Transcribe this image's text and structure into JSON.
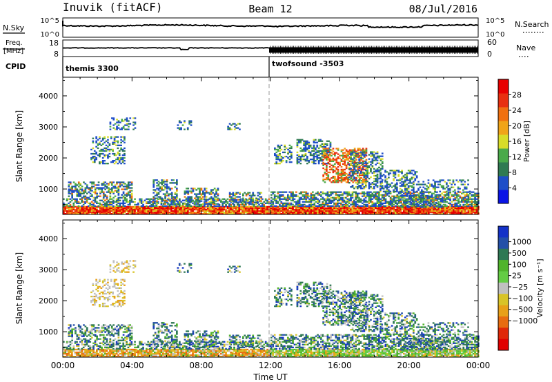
{
  "header": {
    "station": "Inuvik (fitACF)",
    "beam": "Beam 12",
    "date": "08/Jul/2016"
  },
  "panels": {
    "nsky": {
      "left_label": "N.Sky",
      "left_ticks": [
        "10^5",
        "10^0"
      ],
      "right_label": "N.Search",
      "right_ticks": [
        "10^5",
        "10^0"
      ]
    },
    "freq": {
      "left_label_1": "Freq.",
      "left_label_2": "[MHz]",
      "left_ticks": [
        "18",
        "8"
      ],
      "right_label": "Nave",
      "right_ticks": [
        "60",
        "0"
      ]
    },
    "cpid": {
      "label": "CPID",
      "segments": [
        {
          "start_ut": 0,
          "name": "themis 3300"
        },
        {
          "start_ut": 12,
          "name": "twofsound -3503"
        }
      ]
    }
  },
  "colors": {
    "power_scale": [
      "#0a14e6",
      "#1e4ec8",
      "#2f7a52",
      "#4aaa4a",
      "#d8dc28",
      "#f0a418",
      "#f07010",
      "#e83010",
      "#e80000"
    ],
    "velocity_scale": [
      "#1432c8",
      "#2450a8",
      "#2e7854",
      "#50b42c",
      "#64cc44",
      "#c0c0c0",
      "#d8c428",
      "#e8a018",
      "#e86c10",
      "#e02808",
      "#e00000"
    ]
  },
  "chart_data": [
    {
      "type": "heatmap",
      "name": "power",
      "x_label": "",
      "y_label": "Slant Range [km]",
      "xlim": [
        0,
        24
      ],
      "ylim": [
        180,
        4600
      ],
      "y_ticks": [
        1000,
        2000,
        3000,
        4000
      ],
      "colorbar": {
        "label": "Power [dB]",
        "range": [
          0,
          32
        ],
        "ticks": [
          4,
          8,
          12,
          16,
          20,
          24,
          28
        ]
      }
    },
    {
      "type": "heatmap",
      "name": "velocity",
      "x_label": "Time UT",
      "y_label": "Slant Range [km]",
      "xlim": [
        0,
        24
      ],
      "ylim": [
        180,
        4600
      ],
      "x_ticks": [
        "00:00",
        "04:00",
        "08:00",
        "12:00",
        "16:00",
        "20:00",
        "00:00"
      ],
      "y_ticks": [
        1000,
        2000,
        3000,
        4000
      ],
      "colorbar": {
        "label": "Velocity [m s⁻¹]",
        "ticks": [
          "1000",
          "500",
          "100",
          "25",
          "−25",
          "−100",
          "−500",
          "−1000"
        ]
      }
    }
  ]
}
